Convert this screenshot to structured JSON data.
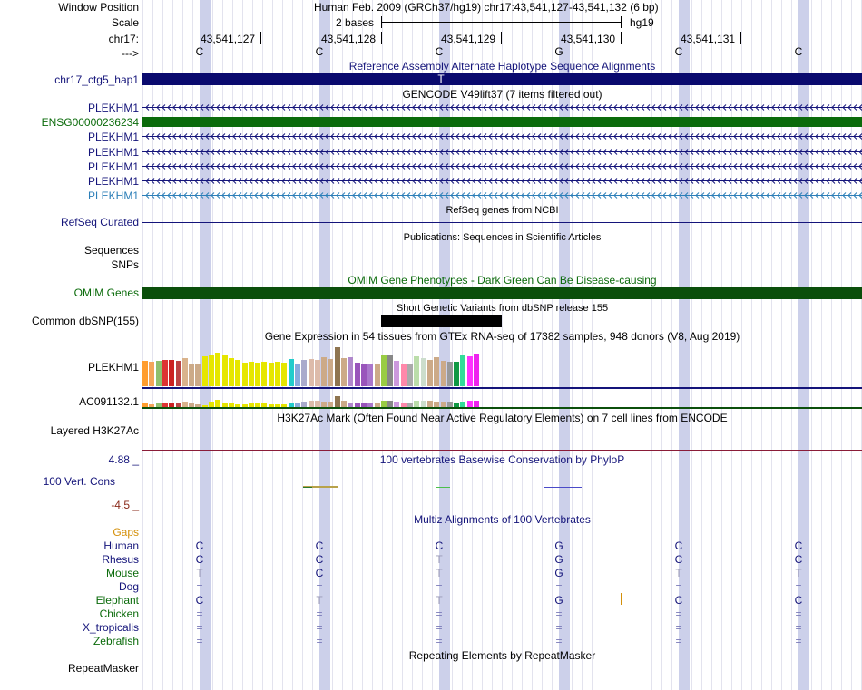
{
  "header": {
    "window_position_label": "Window Position",
    "scale_label": "Scale",
    "chrom_label": "chr17:",
    "strand_label": "--->",
    "assembly_text": "Human Feb. 2009 (GRCh37/hg19)   chr17:43,541,127-43,541,132 (6 bp)",
    "scale_text": "2 bases",
    "scale_db": "hg19",
    "positions": [
      "43,541,127",
      "43,541,128",
      "43,541,129",
      "43,541,130",
      "43,541,131"
    ],
    "bases": [
      "C",
      "C",
      "C",
      "G",
      "C",
      "C"
    ]
  },
  "tracks": {
    "alt_haplotype": {
      "title": "Reference Assembly Alternate Haplotype Sequence Alignments",
      "label": "chr17_ctg5_hap1",
      "base": "T",
      "color": "#0a0a6e"
    },
    "gencode": {
      "title": "GENCODE V49lift37 (7 items filtered out)",
      "items": [
        "PLEKHM1",
        "ENSG00000236234",
        "PLEKHM1",
        "PLEKHM1",
        "PLEKHM1",
        "PLEKHM1",
        "PLEKHM1"
      ],
      "colors": [
        "#14147a",
        "#0b6b0b",
        "#14147a",
        "#14147a",
        "#14147a",
        "#14147a",
        "#2c7fb8"
      ]
    },
    "refseq": {
      "title": "RefSeq genes from NCBI",
      "label": "RefSeq Curated"
    },
    "publications": {
      "title": "Publications: Sequences in Scientific Articles",
      "label_1": "Sequences",
      "label_2": "SNPs"
    },
    "omim": {
      "title": "OMIM Gene Phenotypes - Dark Green Can Be Disease-causing",
      "label": "OMIM Genes",
      "color": "#0b4f0b"
    },
    "dbsnp": {
      "title": "Short Genetic Variants from dbSNP release 155",
      "label": "Common dbSNP(155)"
    },
    "gtex": {
      "title": "Gene Expression in 54 tissues from GTEx RNA-seq of 17382 samples, 948 donors (V8, Aug 2019)",
      "gene_1": "PLEKHM1",
      "gene_2": "AC091132.1",
      "bar_colors": [
        "#ff9d2e",
        "#f4a55a",
        "#8fbf6e",
        "#dd3333",
        "#cc2222",
        "#bb4444",
        "#d9b38c",
        "#ccaa88",
        "#ccaa88",
        "#e6e600",
        "#e6e600",
        "#e6e600",
        "#e6e600",
        "#e6e600",
        "#e6e600",
        "#e6e600",
        "#e6e600",
        "#e6e600",
        "#e6e600",
        "#e6e600",
        "#e6e600",
        "#e6e600",
        "#22cccc",
        "#88aadd",
        "#aaaacc",
        "#ddbbaa",
        "#ddbbaa",
        "#ccaa88",
        "#ccaa88",
        "#8f7550",
        "#ccaa88",
        "#b088cc",
        "#9955bb",
        "#9955bb",
        "#aa77cc",
        "#ccaa88",
        "#99cc44",
        "#888888",
        "#cc99dd",
        "#ff88aa",
        "#aaaaaa",
        "#bbddaa",
        "#ccddcc",
        "#ccaa88",
        "#ccaa88",
        "#ccaa88",
        "#999999",
        "#119944",
        "#33dd99",
        "#ff33ff",
        "#ee22ee"
      ],
      "values_1": [
        0.6,
        0.58,
        0.6,
        0.62,
        0.62,
        0.6,
        0.66,
        0.52,
        0.52,
        0.7,
        0.74,
        0.78,
        0.72,
        0.66,
        0.62,
        0.56,
        0.58,
        0.56,
        0.58,
        0.56,
        0.58,
        0.56,
        0.64,
        0.54,
        0.62,
        0.64,
        0.62,
        0.68,
        0.64,
        0.92,
        0.66,
        0.68,
        0.56,
        0.52,
        0.54,
        0.52,
        0.74,
        0.72,
        0.6,
        0.54,
        0.5,
        0.7,
        0.66,
        0.62,
        0.68,
        0.6,
        0.58,
        0.58,
        0.72,
        0.7,
        0.76
      ],
      "values_2": [
        0.3,
        0.28,
        0.3,
        0.32,
        0.4,
        0.3,
        0.5,
        0.3,
        0.26,
        0.2,
        0.5,
        0.7,
        0.3,
        0.3,
        0.28,
        0.26,
        0.32,
        0.3,
        0.3,
        0.26,
        0.28,
        0.26,
        0.3,
        0.4,
        0.5,
        0.62,
        0.62,
        0.5,
        0.5,
        1.0,
        0.58,
        0.4,
        0.3,
        0.3,
        0.3,
        0.4,
        0.56,
        0.6,
        0.5,
        0.4,
        0.4,
        0.56,
        0.6,
        0.56,
        0.5,
        0.5,
        0.5,
        0.4,
        0.54,
        0.6,
        0.56
      ]
    },
    "h3k27ac": {
      "title": "H3K27Ac Mark (Often Found Near Active Regulatory Elements) on 7 cell lines from ENCODE",
      "label": "Layered H3K27Ac"
    },
    "phylop": {
      "title": "100 vertebrates Basewise Conservation by PhyloP",
      "label": "100 Vert. Cons",
      "max": "4.88 _",
      "min": "-4.5 _"
    },
    "multiz": {
      "title": "Multiz Alignments of 100 Vertebrates",
      "gaps_label": "Gaps",
      "species": [
        {
          "name": "Human",
          "bases": [
            "C",
            "C",
            "C",
            "G",
            "C",
            "C"
          ],
          "color": "#14147a"
        },
        {
          "name": "Rhesus",
          "bases": [
            "C",
            "C",
            "T",
            "G",
            "C",
            "C"
          ],
          "color": "#14147a"
        },
        {
          "name": "Mouse",
          "bases": [
            "T",
            "C",
            "T",
            "G",
            "T",
            "T"
          ],
          "color": "#0b6b0b"
        },
        {
          "name": "Dog",
          "bases": [
            "=",
            "=",
            "=",
            "=",
            "=",
            "="
          ],
          "color": "#14147a"
        },
        {
          "name": "Elephant",
          "bases": [
            "C",
            "T",
            "T",
            "G",
            "C",
            "C"
          ],
          "color": "#0b6b0b"
        },
        {
          "name": "Chicken",
          "bases": [
            "=",
            "=",
            "=",
            "=",
            "=",
            "="
          ],
          "color": "#0b6b0b"
        },
        {
          "name": "X_tropicalis",
          "bases": [
            "=",
            "=",
            "=",
            "=",
            "=",
            "="
          ],
          "color": "#14147a"
        },
        {
          "name": "Zebrafish",
          "bases": [
            "=",
            "=",
            "=",
            "=",
            "=",
            "="
          ],
          "color": "#0b6b0b"
        }
      ]
    },
    "repeatmasker": {
      "title": "Repeating Elements by RepeatMasker",
      "label": "RepeatMasker"
    }
  }
}
